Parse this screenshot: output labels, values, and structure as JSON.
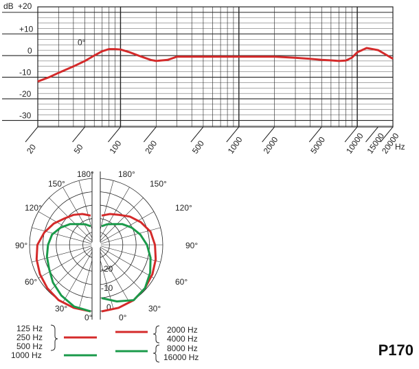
{
  "model": "P170",
  "freq_chart": {
    "ylabel": "dB",
    "xunit": "Hz",
    "curve_label": "0°"
  },
  "polar": {
    "angle_labels": [
      "180°",
      "150°",
      "120°",
      "90°",
      "60°",
      "30°",
      "0°"
    ],
    "db_labels": [
      "-20",
      "-10",
      "0"
    ]
  },
  "legend": {
    "left_group": [
      "125 Hz",
      "250 Hz",
      "500 Hz"
    ],
    "left_single": "1000 Hz",
    "right_group": [
      "2000 Hz",
      "4000 Hz"
    ],
    "right_single": [
      "8000 Hz",
      "16000 Hz"
    ]
  },
  "colors": {
    "red": "#d42a2a",
    "green": "#1a9a4a",
    "grid": "#222222"
  },
  "chart_data": [
    {
      "type": "line",
      "title": "",
      "xlabel": "Hz",
      "ylabel": "dB",
      "xscale": "log",
      "xlim": [
        20,
        20000
      ],
      "ylim": [
        -33,
        22
      ],
      "x_ticks": [
        20,
        50,
        100,
        200,
        500,
        1000,
        2000,
        5000,
        10000,
        15000,
        20000
      ],
      "x_tick_labels": [
        "20",
        "50",
        "100",
        "200",
        "500",
        "1000",
        "2000",
        "5000",
        "10000",
        "15000",
        "20000"
      ],
      "y_ticks": [
        20,
        10,
        0,
        -10,
        -20,
        -30
      ],
      "y_tick_labels": [
        "+20",
        "+10",
        "0",
        "-10",
        "-20",
        "-30"
      ],
      "grid": true,
      "series": [
        {
          "name": "0°",
          "color": "#d42a2a",
          "x": [
            20,
            25,
            30,
            40,
            50,
            60,
            70,
            80,
            90,
            100,
            120,
            150,
            180,
            200,
            250,
            300,
            500,
            1000,
            2000,
            3000,
            4000,
            5000,
            6000,
            7000,
            8000,
            9000,
            10000,
            12000,
            15000,
            18000,
            20000
          ],
          "y": [
            -12,
            -10,
            -8,
            -5,
            -2.5,
            0,
            2,
            3,
            3,
            2.8,
            1.5,
            -0.5,
            -2,
            -2.5,
            -2,
            -0.5,
            -0.5,
            -0.5,
            -0.5,
            -1,
            -1.5,
            -2,
            -2.2,
            -2.5,
            -2.3,
            -1,
            1.5,
            3.5,
            2.5,
            0,
            -1.5
          ]
        }
      ]
    },
    {
      "type": "polar",
      "title": "",
      "angle_unit": "deg",
      "radial_labels": [
        "-20",
        "-10",
        "0"
      ],
      "rlim": [
        -25,
        0
      ],
      "series": [
        {
          "name": "125 Hz / 250 Hz / 500 Hz",
          "color": "#d42a2a",
          "angles": [
            0,
            15,
            30,
            45,
            60,
            75,
            90,
            105,
            120,
            135,
            150,
            165,
            180
          ],
          "db": [
            0,
            -0.5,
            -1,
            -2,
            -3,
            -4,
            -5,
            -7,
            -9,
            -11,
            -12,
            -13,
            -14
          ]
        },
        {
          "name": "1000 Hz",
          "color": "#1a9a4a",
          "angles": [
            0,
            15,
            30,
            45,
            60,
            75,
            90,
            105,
            120,
            135,
            150,
            165,
            180
          ],
          "db": [
            0,
            -1,
            -3,
            -5,
            -7,
            -8,
            -9,
            -10,
            -12,
            -14,
            -16,
            -17,
            -18
          ]
        },
        {
          "name": "2000 Hz / 4000 Hz",
          "color": "#d42a2a",
          "angles": [
            0,
            15,
            30,
            45,
            60,
            75,
            90,
            105,
            120,
            135,
            150,
            165,
            180
          ],
          "db": [
            0,
            -0.5,
            -1,
            -2,
            -3,
            -4,
            -5,
            -6,
            -8,
            -10,
            -12,
            -13,
            -14
          ]
        },
        {
          "name": "8000 Hz / 16000 Hz",
          "color": "#1a9a4a",
          "angles": [
            0,
            15,
            30,
            45,
            60,
            75,
            90,
            105,
            120,
            135,
            150,
            165,
            180
          ],
          "db": [
            -5,
            -3,
            -1,
            -2,
            -4,
            -6,
            -8,
            -10,
            -12,
            -14,
            -16,
            -17,
            -18
          ]
        }
      ]
    }
  ]
}
